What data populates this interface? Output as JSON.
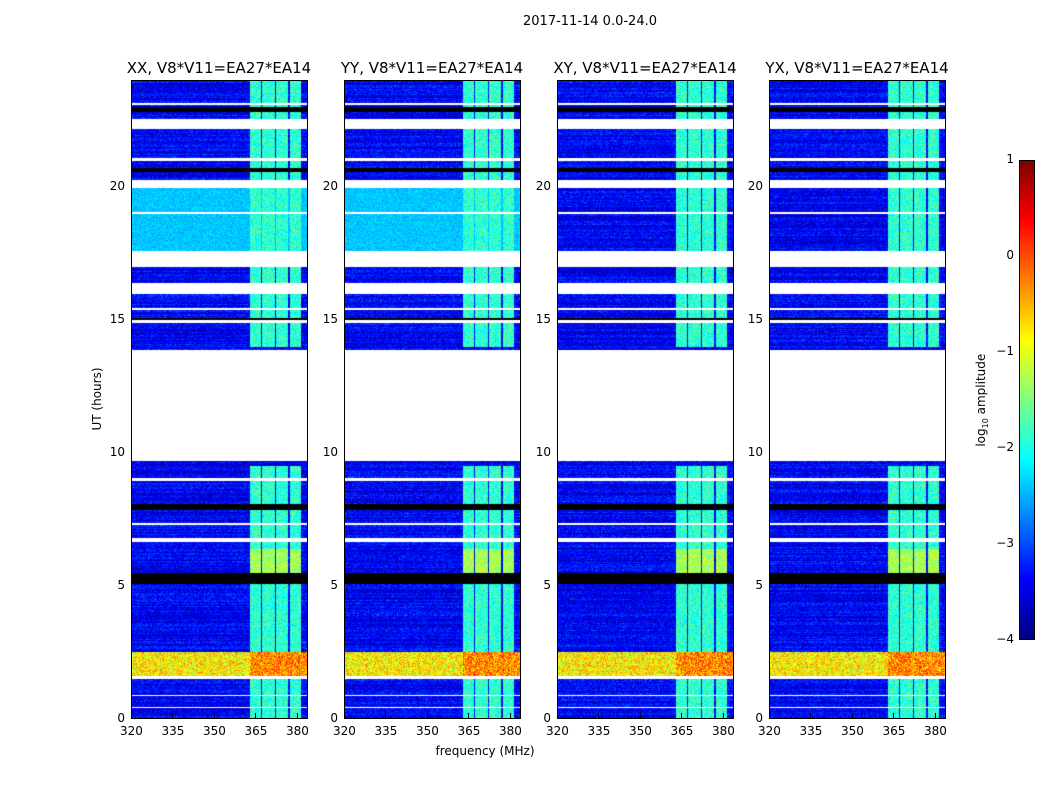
{
  "suptitle": "2017-11-14 0.0-24.0",
  "chart_data": [
    {
      "type": "heatmap",
      "title": "XX, V8*V11=EA27*EA14",
      "ylabel": "UT (hours)",
      "xlabel": "",
      "xlim": [
        320,
        384
      ],
      "ylim": [
        0,
        24
      ],
      "xticks": [
        "320",
        "335",
        "350",
        "365",
        "380"
      ],
      "yticks": [
        "0",
        "5",
        "10",
        "15",
        "20"
      ]
    },
    {
      "type": "heatmap",
      "title": "YY, V8*V11=EA27*EA14",
      "ylabel": "",
      "xlabel": "frequency (MHz)",
      "xlim": [
        320,
        384
      ],
      "ylim": [
        0,
        24
      ],
      "xticks": [
        "320",
        "335",
        "350",
        "365",
        "380"
      ],
      "yticks": [
        "0",
        "5",
        "10",
        "15",
        "20"
      ]
    },
    {
      "type": "heatmap",
      "title": "XY, V8*V11=EA27*EA14",
      "ylabel": "",
      "xlabel": "",
      "xlim": [
        320,
        384
      ],
      "ylim": [
        0,
        24
      ],
      "xticks": [
        "320",
        "335",
        "350",
        "365",
        "380"
      ],
      "yticks": [
        "0",
        "5",
        "10",
        "15",
        "20"
      ]
    },
    {
      "type": "heatmap",
      "title": "YX, V8*V11=EA27*EA14",
      "ylabel": "",
      "xlabel": "",
      "xlim": [
        320,
        384
      ],
      "ylim": [
        0,
        24
      ],
      "xticks": [
        "320",
        "335",
        "350",
        "365",
        "380"
      ],
      "yticks": [
        "0",
        "5",
        "10",
        "15",
        "20"
      ]
    }
  ],
  "model": {
    "background_log_amp": -3.4,
    "flagged_hours": [
      [
        9.7,
        13.9
      ],
      [
        16.0,
        16.4
      ],
      [
        17.0,
        17.6
      ],
      [
        22.2,
        22.6
      ],
      [
        20.0,
        20.3
      ],
      [
        1.5,
        1.6
      ],
      [
        0.4,
        0.45
      ],
      [
        0.85,
        0.9
      ],
      [
        8.95,
        9.05
      ],
      [
        7.3,
        7.35
      ],
      [
        6.65,
        6.8
      ],
      [
        14.9,
        15.0
      ],
      [
        15.4,
        15.45
      ],
      [
        19.0,
        19.1
      ],
      [
        21.0,
        21.1
      ],
      [
        23.1,
        23.2
      ]
    ],
    "zero_hours": [
      [
        5.05,
        5.5
      ],
      [
        22.85,
        23.05
      ],
      [
        7.85,
        8.1
      ],
      [
        15.0,
        15.1
      ],
      [
        20.6,
        20.75
      ]
    ],
    "rfi_channels_mhz": [
      [
        363,
        367
      ],
      [
        367.5,
        372
      ],
      [
        372.5,
        377
      ],
      [
        377.5,
        381.5
      ]
    ],
    "rfi_log_amp": -1.6,
    "bright_hours": [
      [
        1.6,
        2.5
      ]
    ],
    "bright_log_amp": -0.3,
    "elevated_hours": [
      [
        17.6,
        20.0
      ]
    ],
    "elevated_log_amp": -2.4
  },
  "colorbar": {
    "label": "log10 amplitude",
    "label_main": "log",
    "label_sub": "10",
    "label_rest": " amplitude",
    "range": [
      -4,
      1
    ],
    "ticks": [
      "1",
      "0",
      "−1",
      "−2",
      "−3",
      "−4"
    ]
  }
}
